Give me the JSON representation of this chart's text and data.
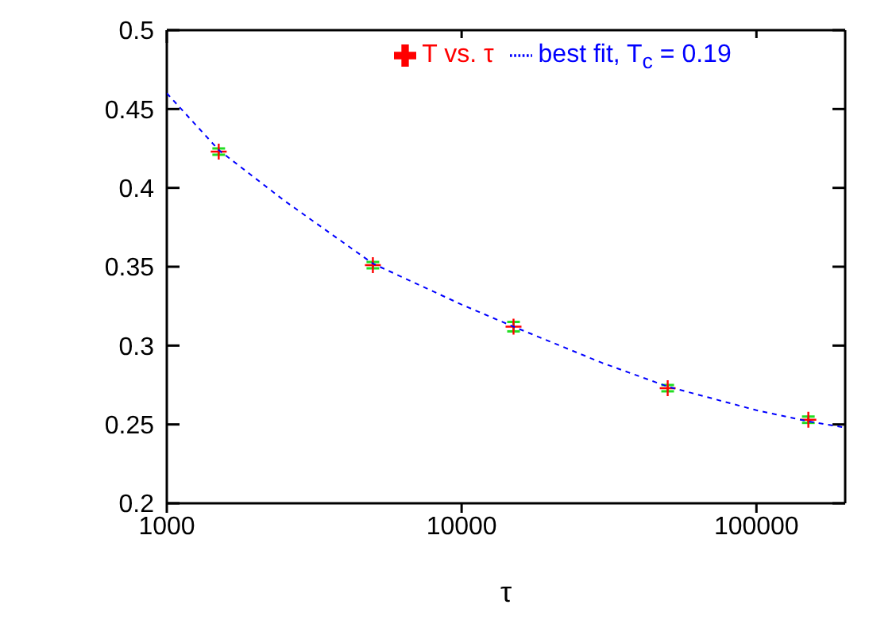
{
  "chart_data": {
    "type": "scatter",
    "xlabel": "τ",
    "log": "x",
    "xlim": [
      1000,
      200000
    ],
    "xticks": [
      1000,
      10000,
      100000
    ],
    "ylim": [
      0.2,
      0.5
    ],
    "yticks": [
      0.2,
      0.25,
      0.3,
      0.35,
      0.4,
      0.45,
      0.5
    ],
    "legend": "top right",
    "x": [
      1500,
      5000,
      15000,
      50000,
      150000
    ],
    "series": [
      {
        "name": "T vs. τ",
        "color": "#ff0000",
        "marker": "cross",
        "values": [
          0.423,
          0.351,
          0.312,
          0.273,
          0.253
        ],
        "errors": [
          0.002,
          0.002,
          0.003,
          0.002,
          0.002
        ]
      },
      {
        "name": "best fit, T$_{c}$ = 0.19",
        "type": "line",
        "color": "#0000ff",
        "line_style": "dashed",
        "marker": "none",
        "x": [
          1000,
          1500,
          2500,
          5000,
          10000,
          15000,
          30000,
          50000,
          100000,
          150000,
          200000
        ],
        "values": [
          0.46,
          0.424,
          0.392,
          0.352,
          0.326,
          0.312,
          0.289,
          0.274,
          0.259,
          0.252,
          0.248
        ]
      }
    ]
  }
}
